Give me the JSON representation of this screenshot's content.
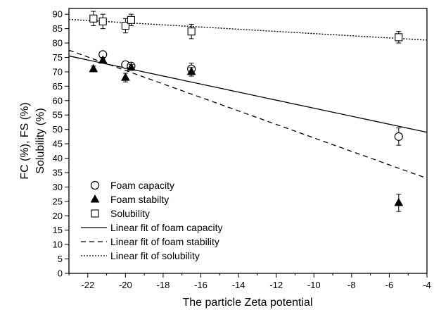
{
  "chart_data": {
    "type": "scatter",
    "title": "",
    "xlabel": "The particle Zeta potential",
    "ylabel_lines": [
      "FC (%), FS (%)",
      "Solubility (%)"
    ],
    "xlim": [
      -23,
      -4
    ],
    "ylim": [
      0,
      92
    ],
    "xticks": [
      -22,
      -20,
      -18,
      -16,
      -14,
      -12,
      -10,
      -8,
      -6,
      -4
    ],
    "yticks": [
      0,
      5,
      10,
      15,
      20,
      25,
      30,
      35,
      40,
      45,
      50,
      55,
      60,
      65,
      70,
      75,
      80,
      85,
      90
    ],
    "grid": false,
    "legend_position": "bottom-left",
    "series": [
      {
        "name": "Foam capacity",
        "marker": "circle-open",
        "points": [
          {
            "x": -21.2,
            "y": 76.0,
            "err": 1.0
          },
          {
            "x": -20.0,
            "y": 72.5,
            "err": 1.0
          },
          {
            "x": -19.7,
            "y": 72.0,
            "err": 1.0
          },
          {
            "x": -16.5,
            "y": 71.0,
            "err": 2.0
          },
          {
            "x": -5.5,
            "y": 47.5,
            "err": 3.0
          }
        ]
      },
      {
        "name": "Foam stabilty",
        "marker": "triangle-filled",
        "points": [
          {
            "x": -21.7,
            "y": 71.0,
            "err": 1.0
          },
          {
            "x": -21.2,
            "y": 74.0,
            "err": 1.0
          },
          {
            "x": -20.0,
            "y": 68.0,
            "err": 1.5
          },
          {
            "x": -19.7,
            "y": 71.5,
            "err": 1.0
          },
          {
            "x": -16.5,
            "y": 70.0,
            "err": 1.5
          },
          {
            "x": -5.5,
            "y": 24.5,
            "err": 3.0
          }
        ]
      },
      {
        "name": "Solubility",
        "marker": "square-open",
        "points": [
          {
            "x": -21.7,
            "y": 88.5,
            "err": 2.5
          },
          {
            "x": -21.2,
            "y": 87.5,
            "err": 2.5
          },
          {
            "x": -20.0,
            "y": 86.0,
            "err": 2.5
          },
          {
            "x": -19.7,
            "y": 88.0,
            "err": 2.0
          },
          {
            "x": -16.5,
            "y": 84.0,
            "err": 2.5
          },
          {
            "x": -5.5,
            "y": 82.0,
            "err": 2.0
          }
        ]
      }
    ],
    "fits": [
      {
        "name": "Linear fit of foam capacity",
        "style": "solid",
        "x": [
          -23,
          -4
        ],
        "y": [
          75.5,
          49.0
        ]
      },
      {
        "name": "Linear fit of foam stability",
        "style": "dashed",
        "x": [
          -23,
          -4
        ],
        "y": [
          77.5,
          33.0
        ]
      },
      {
        "name": "Linear fit of solubility",
        "style": "dotted",
        "x": [
          -23,
          -4
        ],
        "y": [
          88.2,
          81.0
        ]
      }
    ]
  }
}
